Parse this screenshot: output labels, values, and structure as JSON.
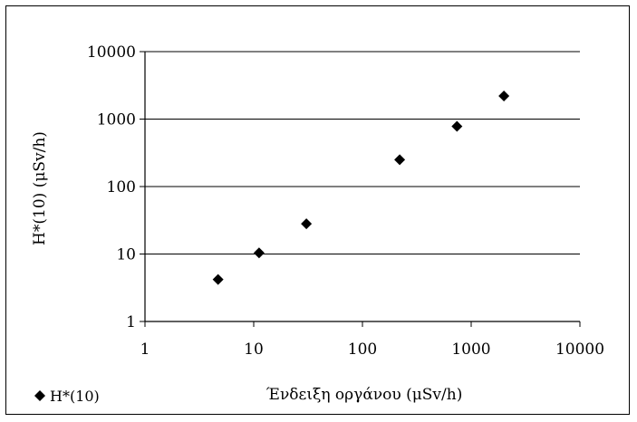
{
  "chart_data": {
    "type": "scatter",
    "scale": {
      "x": "log",
      "y": "log"
    },
    "xlim": [
      1,
      10000
    ],
    "ylim": [
      1,
      10000
    ],
    "grid": {
      "horizontal": true,
      "vertical": false
    },
    "legend_position": "bottom-left",
    "xlabel": "Ένδειξη οργάνου (μSv/h)",
    "ylabel": "H*(10) (μSv/h)",
    "x_ticks": [
      "1",
      "10",
      "100",
      "1000",
      "10000"
    ],
    "y_ticks": [
      "1",
      "10",
      "100",
      "1000",
      "10000"
    ],
    "series": [
      {
        "name": "H*(10)",
        "color": "#000000",
        "marker": "diamond",
        "points": [
          {
            "x": 4.7,
            "y": 4.2
          },
          {
            "x": 11.2,
            "y": 10.4
          },
          {
            "x": 30.5,
            "y": 28
          },
          {
            "x": 220,
            "y": 250
          },
          {
            "x": 740,
            "y": 780
          },
          {
            "x": 2000,
            "y": 2200
          }
        ]
      }
    ]
  }
}
